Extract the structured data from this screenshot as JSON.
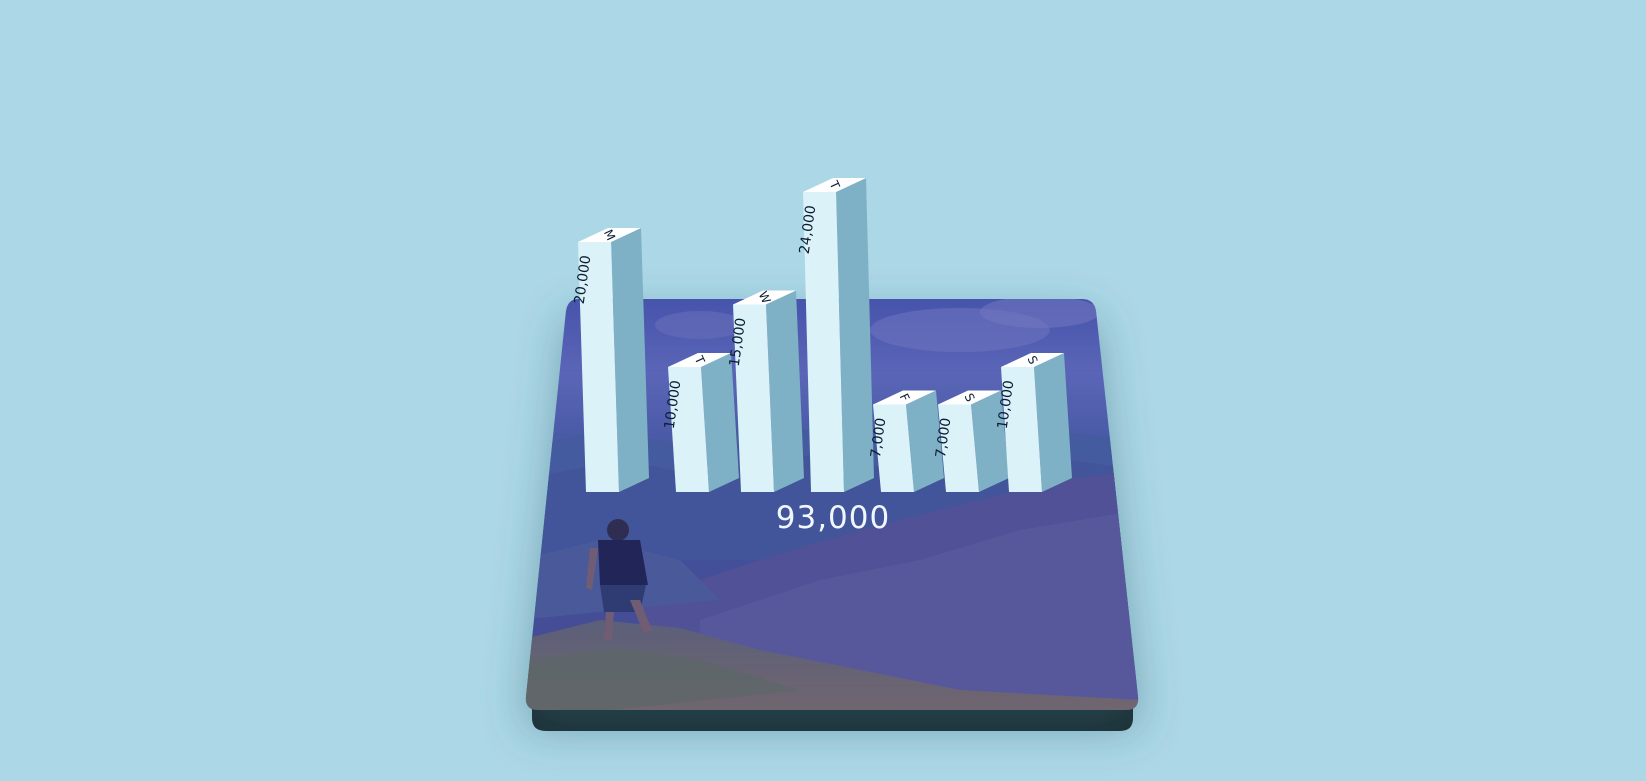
{
  "chart_data": {
    "type": "bar",
    "categories": [
      "M",
      "T",
      "W",
      "T",
      "F",
      "S",
      "S"
    ],
    "values": [
      20000,
      10000,
      15000,
      24000,
      7000,
      7000,
      10000
    ],
    "value_labels": [
      "20,000",
      "10,000",
      "15,000",
      "24,000",
      "7,000",
      "7,000",
      "10,000"
    ],
    "total": "93,000",
    "ylim": [
      0,
      24000
    ]
  },
  "colors": {
    "background": "#acd7e6",
    "bar_front": "#daf2f8",
    "bar_side": "#7fb1c6",
    "bar_top": "#ffffff",
    "platform_overlay": "#3a3f9a",
    "platform_base": "#1d2b30"
  }
}
